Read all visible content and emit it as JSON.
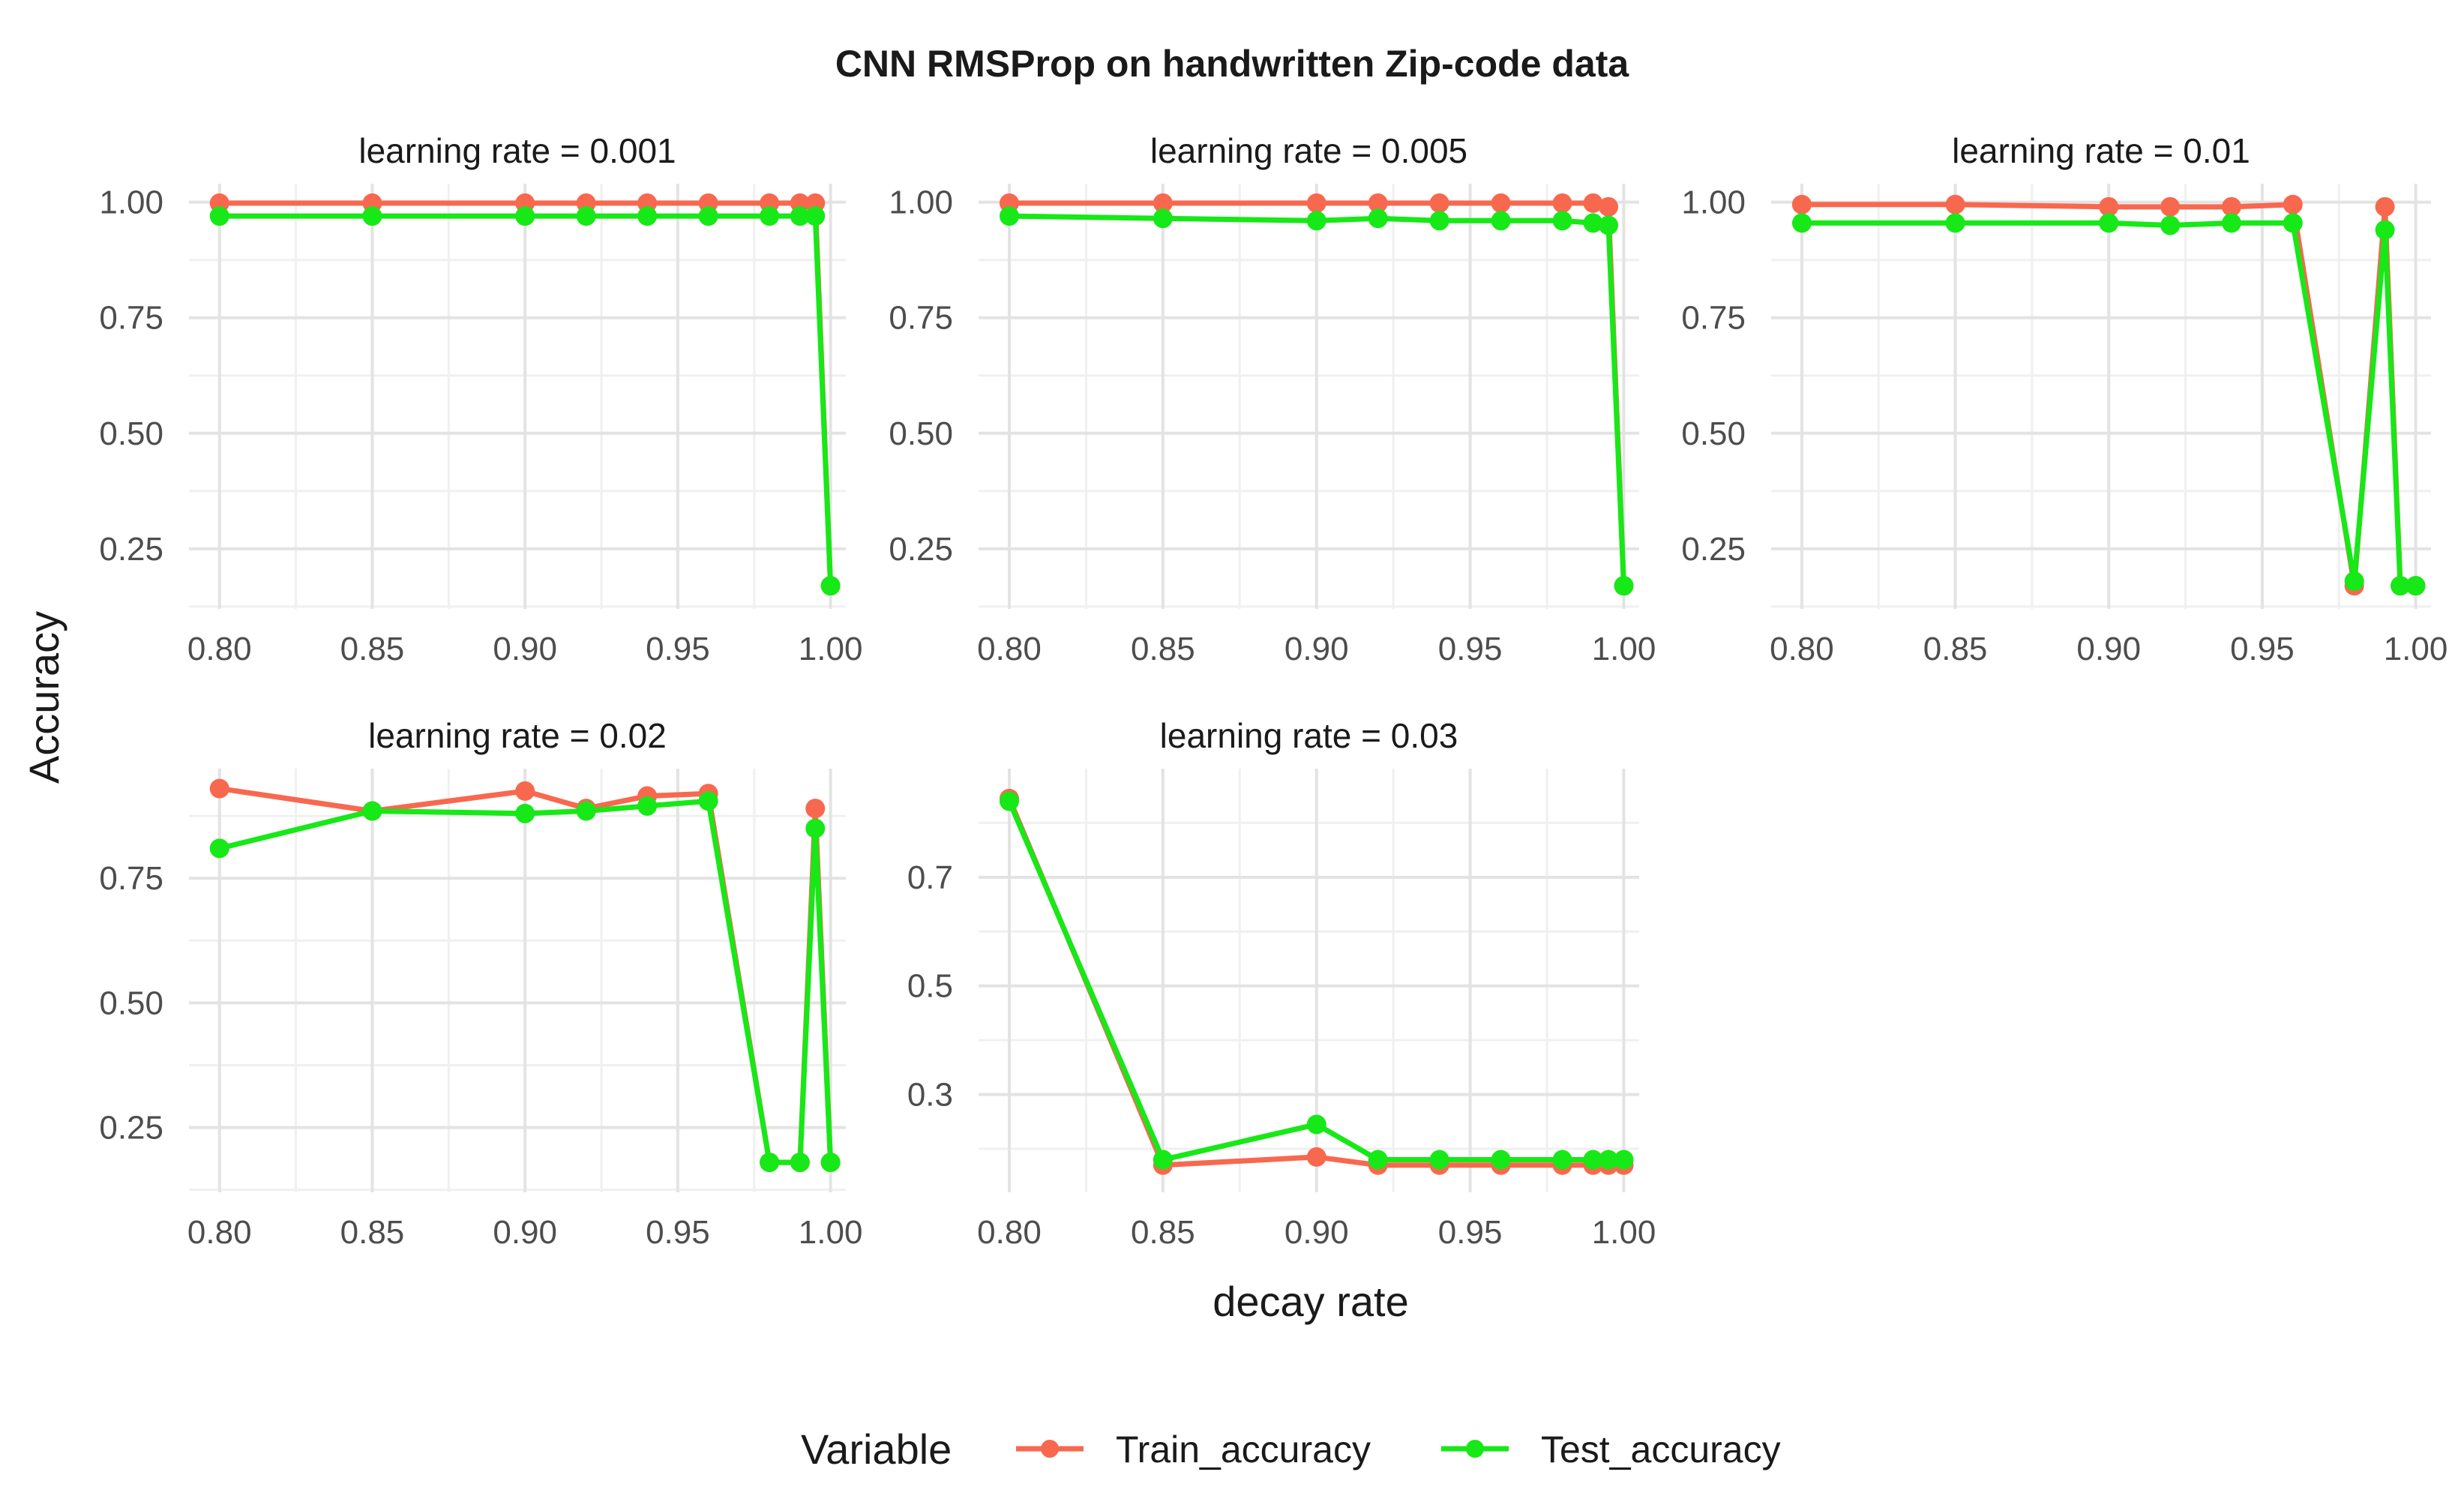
{
  "chart_data": {
    "type": "line",
    "title": "CNN RMSProp on handwritten Zip-code data",
    "xlabel": "decay rate",
    "ylabel": "Accuracy",
    "grid": true,
    "legend": {
      "title": "Variable",
      "position": "bottom",
      "entries": [
        "Train_accuracy",
        "Test_accuracy"
      ]
    },
    "colors": {
      "Train_accuracy": "#f8684e",
      "Test_accuracy": "#17e817"
    },
    "x_ticks": [
      "0.80",
      "0.85",
      "0.90",
      "0.95",
      "1.00"
    ],
    "x_tick_values": [
      0.8,
      0.85,
      0.9,
      0.95,
      1.0
    ],
    "xlim": [
      0.79,
      1.005
    ],
    "facets": [
      {
        "label": "learning rate = 0.001",
        "ylim": [
          0.12,
          1.04
        ],
        "y_ticks": [
          "0.25",
          "0.50",
          "0.75",
          "1.00"
        ],
        "y_tick_values": [
          0.25,
          0.5,
          0.75,
          1.0
        ],
        "x": [
          0.8,
          0.85,
          0.9,
          0.92,
          0.94,
          0.96,
          0.98,
          0.99,
          0.995,
          1.0
        ],
        "series": [
          {
            "name": "Train_accuracy",
            "values": [
              0.998,
              0.998,
              0.998,
              0.998,
              0.998,
              0.998,
              0.998,
              0.998,
              0.998,
              0.17
            ]
          },
          {
            "name": "Test_accuracy",
            "values": [
              0.97,
              0.97,
              0.97,
              0.97,
              0.97,
              0.97,
              0.97,
              0.97,
              0.97,
              0.17
            ]
          }
        ]
      },
      {
        "label": "learning rate = 0.005",
        "ylim": [
          0.12,
          1.04
        ],
        "y_ticks": [
          "0.25",
          "0.50",
          "0.75",
          "1.00"
        ],
        "y_tick_values": [
          0.25,
          0.5,
          0.75,
          1.0
        ],
        "x": [
          0.8,
          0.85,
          0.9,
          0.92,
          0.94,
          0.96,
          0.98,
          0.99,
          0.995,
          1.0
        ],
        "series": [
          {
            "name": "Train_accuracy",
            "values": [
              0.998,
              0.998,
              0.998,
              0.998,
              0.998,
              0.998,
              0.998,
              0.998,
              0.99,
              0.17
            ]
          },
          {
            "name": "Test_accuracy",
            "values": [
              0.97,
              0.965,
              0.96,
              0.965,
              0.96,
              0.96,
              0.96,
              0.955,
              0.95,
              0.17
            ]
          }
        ]
      },
      {
        "label": "learning rate = 0.01",
        "ylim": [
          0.12,
          1.04
        ],
        "y_ticks": [
          "0.25",
          "0.50",
          "0.75",
          "1.00"
        ],
        "y_tick_values": [
          0.25,
          0.5,
          0.75,
          1.0
        ],
        "x": [
          0.8,
          0.85,
          0.9,
          0.92,
          0.94,
          0.96,
          0.98,
          0.99,
          0.995,
          1.0
        ],
        "series": [
          {
            "name": "Train_accuracy",
            "values": [
              0.995,
              0.995,
              0.99,
              0.99,
              0.99,
              0.995,
              0.17,
              0.99,
              0.17,
              0.17
            ]
          },
          {
            "name": "Test_accuracy",
            "values": [
              0.955,
              0.955,
              0.955,
              0.95,
              0.955,
              0.955,
              0.18,
              0.94,
              0.17,
              0.17
            ]
          }
        ]
      },
      {
        "label": "learning rate = 0.02",
        "ylim": [
          0.12,
          0.97
        ],
        "y_ticks": [
          "0.25",
          "0.50",
          "0.75"
        ],
        "y_tick_values": [
          0.25,
          0.5,
          0.75
        ],
        "x": [
          0.8,
          0.85,
          0.9,
          0.92,
          0.94,
          0.96,
          0.98,
          0.99,
          0.995,
          1.0
        ],
        "series": [
          {
            "name": "Train_accuracy",
            "values": [
              0.93,
              0.885,
              0.925,
              0.89,
              0.915,
              0.92,
              0.18,
              0.18,
              0.89,
              0.18
            ]
          },
          {
            "name": "Test_accuracy",
            "values": [
              0.81,
              0.885,
              0.88,
              0.885,
              0.895,
              0.905,
              0.18,
              0.18,
              0.85,
              0.18
            ]
          }
        ]
      },
      {
        "label": "learning rate = 0.03",
        "ylim": [
          0.12,
          0.9
        ],
        "y_ticks": [
          "0.3",
          "0.5",
          "0.7"
        ],
        "y_tick_values": [
          0.3,
          0.5,
          0.7
        ],
        "x": [
          0.8,
          0.85,
          0.9,
          0.92,
          0.94,
          0.96,
          0.98,
          0.99,
          0.995,
          1.0
        ],
        "series": [
          {
            "name": "Train_accuracy",
            "values": [
              0.845,
              0.17,
              0.185,
              0.17,
              0.17,
              0.17,
              0.17,
              0.17,
              0.17,
              0.17
            ]
          },
          {
            "name": "Test_accuracy",
            "values": [
              0.84,
              0.18,
              0.245,
              0.18,
              0.18,
              0.18,
              0.18,
              0.18,
              0.18,
              0.18
            ]
          }
        ]
      }
    ]
  }
}
